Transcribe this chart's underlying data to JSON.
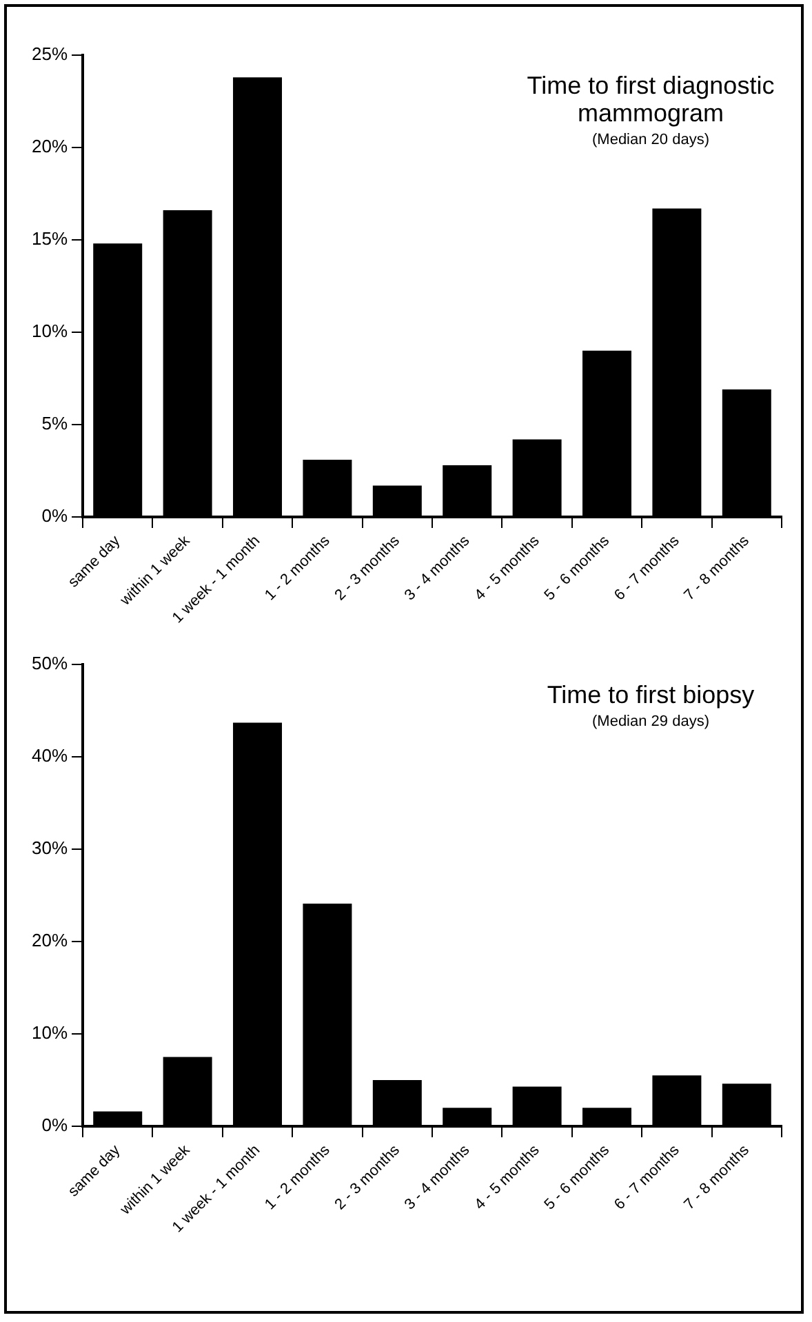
{
  "chart_data": [
    {
      "type": "bar",
      "title": "Time to first diagnostic mammogram",
      "subtitle": "(Median 20 days)",
      "categories": [
        "same day",
        "within 1 week",
        "1 week - 1 month",
        "1 - 2 months",
        "2 - 3 months",
        "3 - 4 months",
        "4 - 5 months",
        "5 - 6 months",
        "6 - 7 months",
        "7 - 8 months"
      ],
      "values": [
        14.8,
        16.6,
        23.8,
        3.1,
        1.7,
        2.8,
        4.2,
        9.0,
        16.7,
        6.9
      ],
      "color": "#000000",
      "ylim": [
        0,
        25
      ],
      "yticks": [
        {
          "value": 0,
          "label": "0%"
        },
        {
          "value": 5,
          "label": "5%"
        },
        {
          "value": 10,
          "label": "10%"
        },
        {
          "value": 15,
          "label": "15%"
        },
        {
          "value": 20,
          "label": "20%"
        },
        {
          "value": 25,
          "label": "25%"
        }
      ],
      "grid": false,
      "legend": false
    },
    {
      "type": "bar",
      "title": "Time to first biopsy",
      "subtitle": "(Median 29 days)",
      "categories": [
        "same day",
        "within 1 week",
        "1 week - 1 month",
        "1 - 2 months",
        "2 - 3 months",
        "3 - 4 months",
        "4 - 5 months",
        "5 - 6 months",
        "6 - 7 months",
        "7 - 8 months"
      ],
      "values": [
        1.6,
        7.5,
        43.7,
        24.1,
        5.0,
        2.0,
        4.3,
        2.0,
        5.5,
        4.6
      ],
      "color": "#000000",
      "ylim": [
        0,
        50
      ],
      "yticks": [
        {
          "value": 0,
          "label": "0%"
        },
        {
          "value": 10,
          "label": "10%"
        },
        {
          "value": 20,
          "label": "20%"
        },
        {
          "value": 30,
          "label": "30%"
        },
        {
          "value": 40,
          "label": "40%"
        },
        {
          "value": 50,
          "label": "50%"
        }
      ],
      "grid": false,
      "legend": false
    }
  ]
}
